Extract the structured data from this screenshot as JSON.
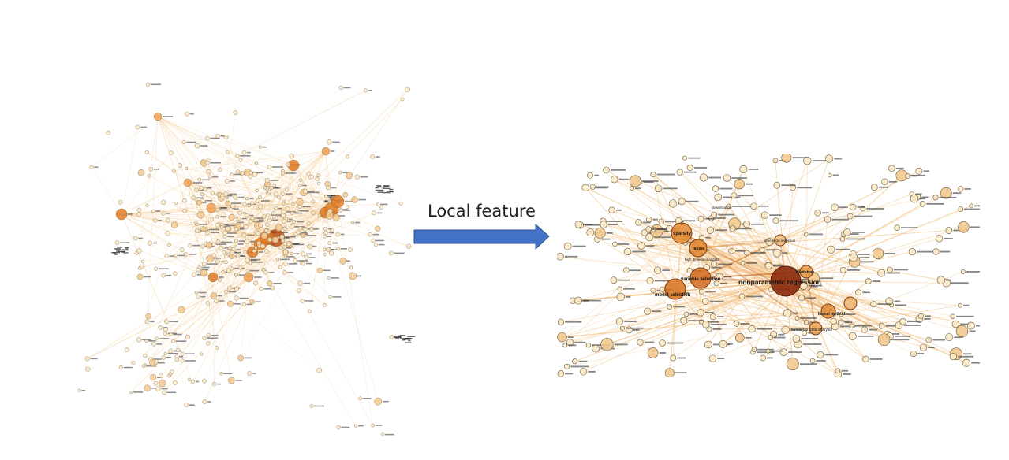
{
  "arrow": {
    "caption": "Local feature",
    "color": "#4472c4",
    "border": "#2f528f"
  },
  "global_view": {
    "edge_color": "#f4c78a",
    "node_colors": [
      "#fbe7c4",
      "#f4c98e",
      "#ef9f4f",
      "#e07a22",
      "#b84e1a"
    ]
  },
  "local_view": {
    "edge_color": "#f2bd78",
    "labels": {
      "nonparametric_regression": "nonparametric regression",
      "variable_selection": "variable selection",
      "model_selection": "model selection",
      "sparsity": "sparsity",
      "lasso": "lasso",
      "bootstrap": "bootstrap",
      "kernel_method": "kernel method",
      "functional_data_analysis": "functional data analysis",
      "dimension_reduction": "dimension reduction",
      "high_dimensional_data": "high dimensional data",
      "classification": "classification"
    }
  }
}
